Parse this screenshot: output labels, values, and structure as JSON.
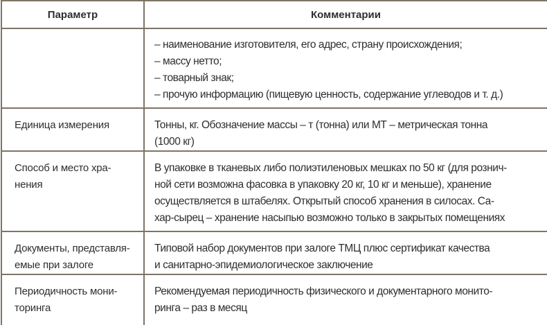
{
  "header": {
    "param": "Параметр",
    "comment": "Комментарии"
  },
  "rows": [
    {
      "param": [],
      "comment": [
        "– наименование изготовителя, его адрес, страну происхождения;",
        "– массу нетто;",
        "– товарный знак;",
        "– прочую информацию (пищевую ценность, содержание углеводов и т. д.)"
      ]
    },
    {
      "param": [
        "Единица измерения"
      ],
      "comment": [
        "Тонны, кг. Обозначение массы – т (тонна) или МТ – метрическая тонна",
        "(1000 кг)"
      ]
    },
    {
      "param": [
        "Способ и место хра-",
        "нения"
      ],
      "comment": [
        "В упаковке в тканевых либо полиэтиленовых мешках по 50 кг (для рознич-",
        "ной сети возможна фасовка в упаковку 20 кг, 10 кг и меньше), хранение",
        "осуществляется в штабелях. Открытый способ хранения в силосах. Са-",
        "хар-сырец – хранение насыпью возможно только в закрытых помещениях"
      ]
    },
    {
      "param": [
        "Документы, представля-",
        "емые при залоге"
      ],
      "comment": [
        "Типовой набор документов при залоге ТМЦ плюс сертификат качества",
        "и санитарно-эпидемиологическое заключение"
      ]
    },
    {
      "param": [
        "Периодичность мони-",
        "торинга"
      ],
      "comment": [
        "Рекомендуемая периодичность физического и документарного монито-",
        "ринга – раз в месяц"
      ]
    }
  ]
}
